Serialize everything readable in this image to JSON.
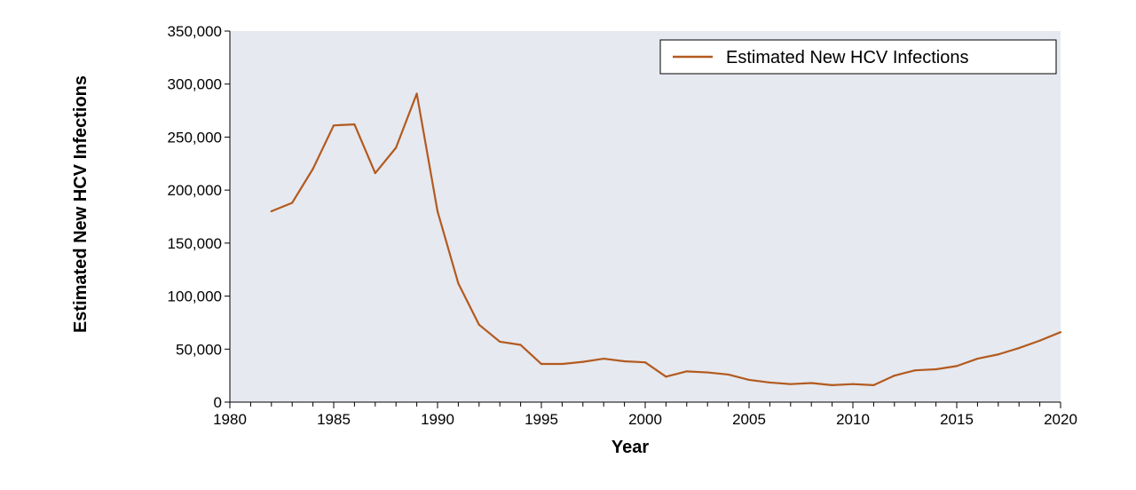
{
  "chart_data": {
    "type": "line",
    "title": "",
    "xlabel": "Year",
    "ylabel": "Estimated New HCV Infections",
    "xlim": [
      1980,
      2020
    ],
    "ylim": [
      0,
      350000
    ],
    "x_ticks": [
      1980,
      1985,
      1990,
      1995,
      2000,
      2005,
      2010,
      2015,
      2020
    ],
    "x_tick_labels": [
      "1980",
      "1985",
      "1990",
      "1995",
      "2000",
      "2005",
      "2010",
      "2015",
      "2020"
    ],
    "y_ticks": [
      0,
      50000,
      100000,
      150000,
      200000,
      250000,
      300000,
      350000
    ],
    "y_tick_labels": [
      "0",
      "50,000",
      "100,000",
      "150,000",
      "200,000",
      "250,000",
      "300,000",
      "350,000"
    ],
    "grid": false,
    "legend_position": "top-right",
    "plot_background": "#e6e9ef",
    "series": [
      {
        "name": "Estimated New HCV Infections",
        "color": "#b35a1f",
        "x": [
          1982,
          1983,
          1984,
          1985,
          1986,
          1987,
          1988,
          1989,
          1990,
          1991,
          1992,
          1993,
          1994,
          1995,
          1996,
          1997,
          1998,
          1999,
          2000,
          2001,
          2002,
          2003,
          2004,
          2005,
          2006,
          2007,
          2008,
          2009,
          2010,
          2011,
          2012,
          2013,
          2014,
          2015,
          2016,
          2017,
          2018,
          2019,
          2020
        ],
        "y": [
          180000,
          188000,
          220000,
          261000,
          262000,
          216000,
          240000,
          291000,
          180000,
          112000,
          73000,
          57000,
          54000,
          36000,
          36000,
          38000,
          41000,
          38500,
          37500,
          24000,
          29000,
          28000,
          26000,
          21000,
          18500,
          17000,
          18000,
          16000,
          17000,
          16000,
          25000,
          30000,
          31000,
          34000,
          41000,
          45000,
          51000,
          58000,
          66000
        ]
      }
    ]
  }
}
